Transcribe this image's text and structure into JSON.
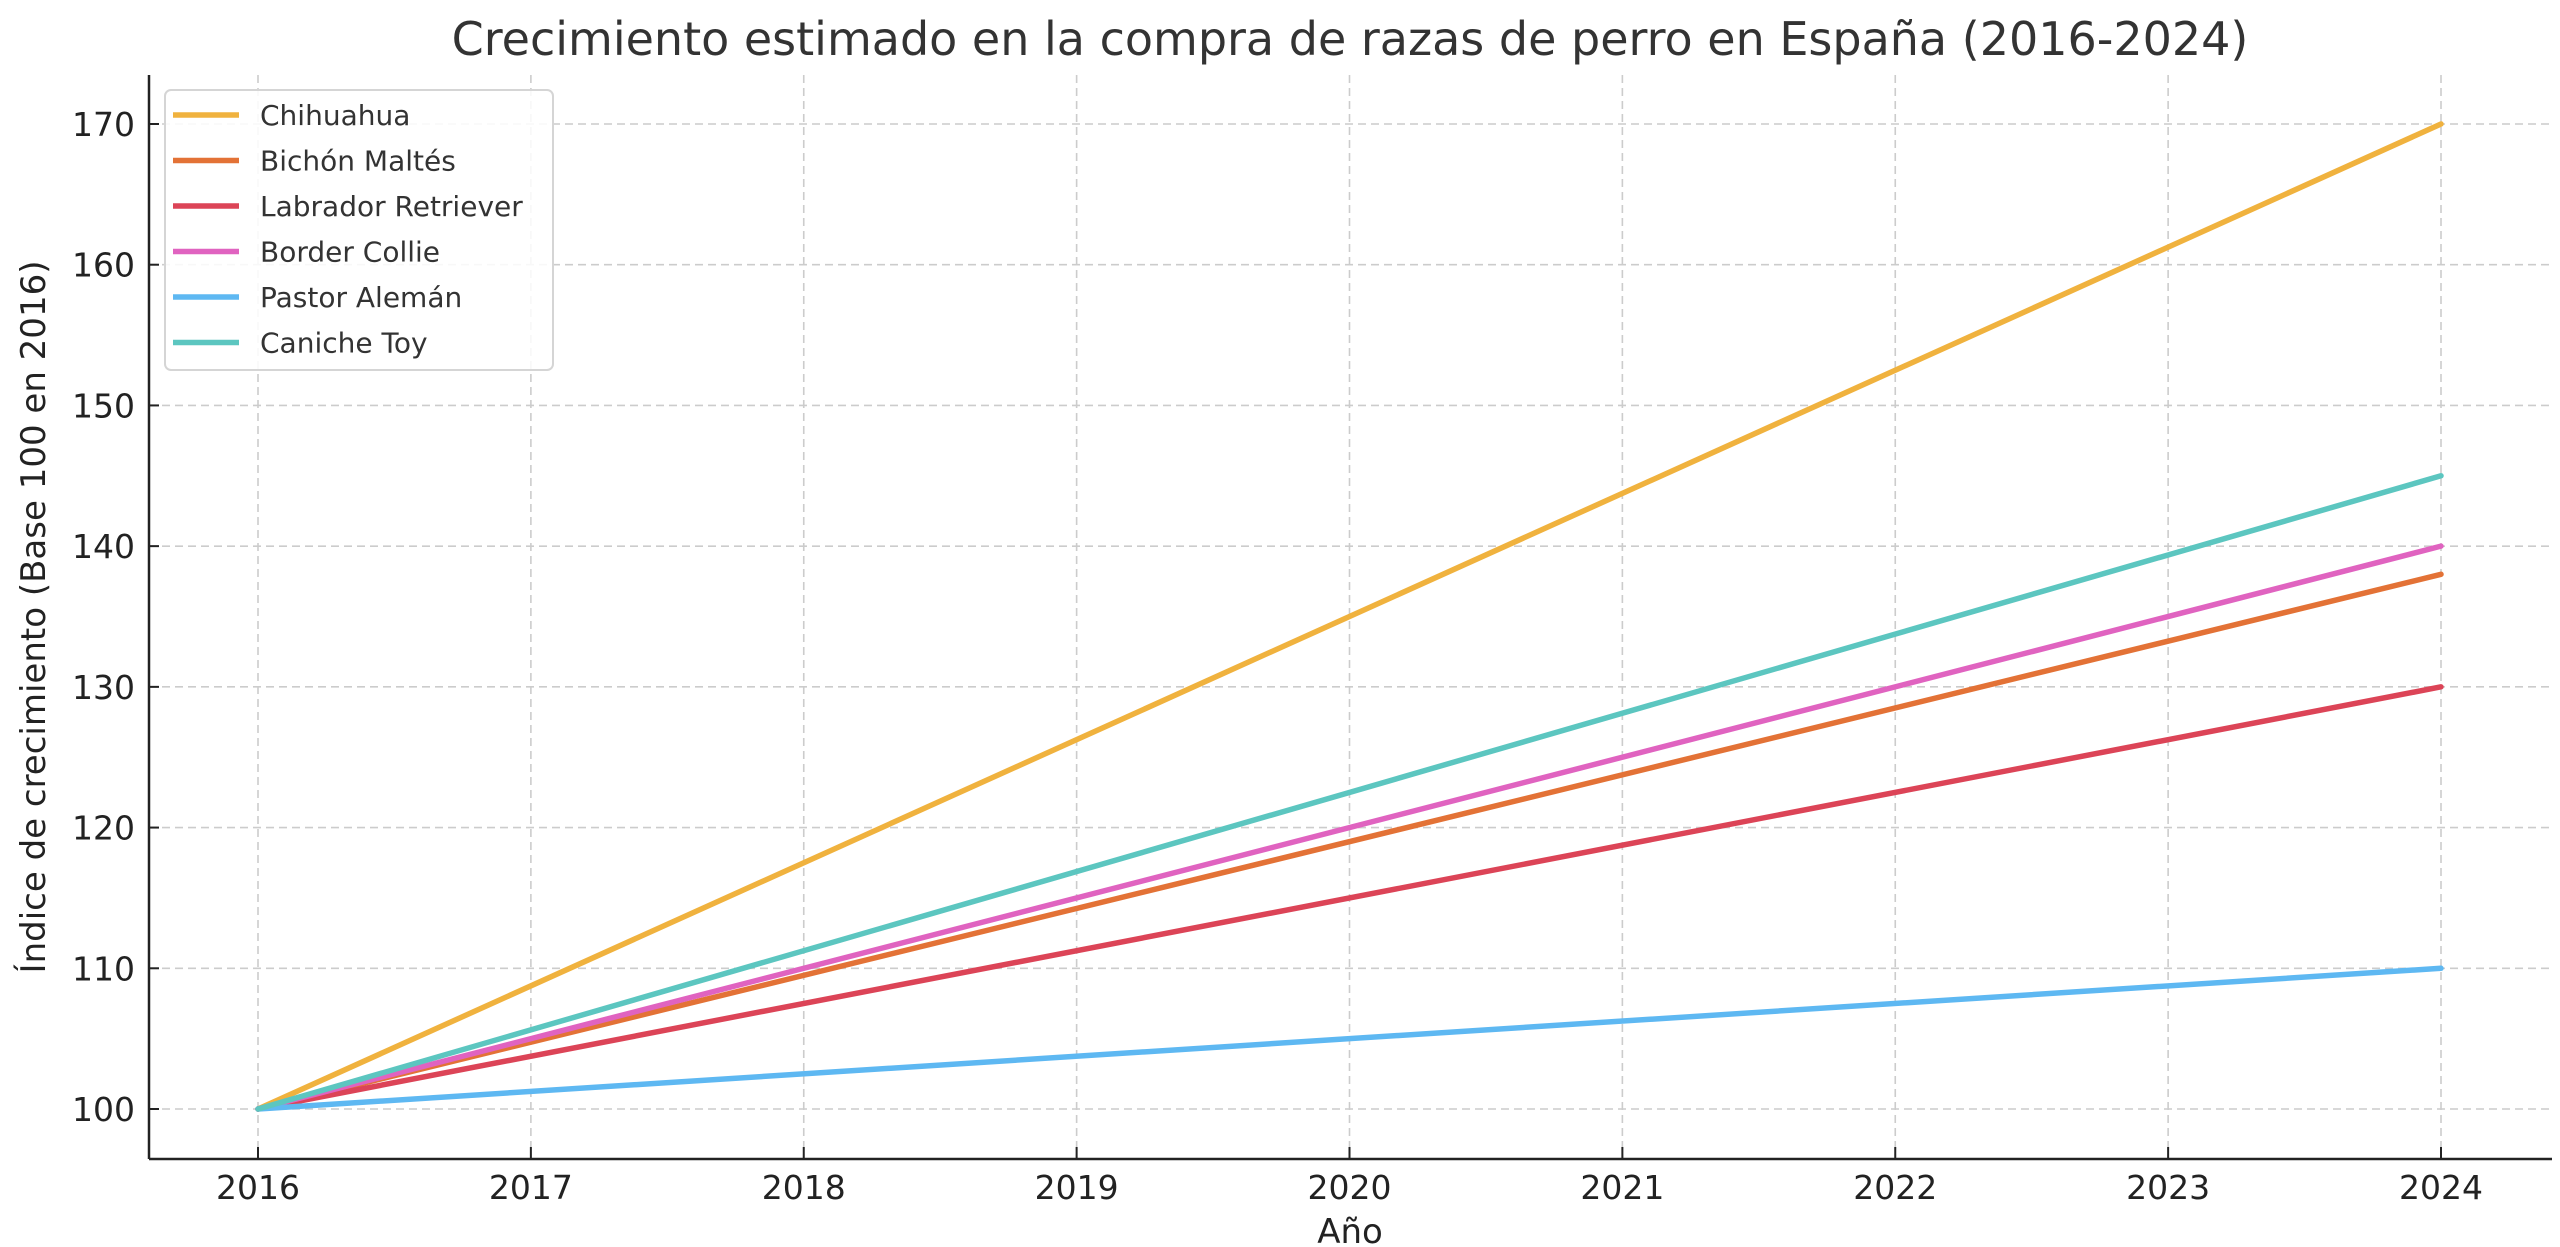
{
  "chart_data": {
    "type": "line",
    "title": "Crecimiento estimado en la compra de razas de perro en España (2016-2024)",
    "xlabel": "Año",
    "ylabel": "Índice de crecimiento (Base 100 en 2016)",
    "x": [
      2016,
      2024
    ],
    "xticks": [
      "2016",
      "2017",
      "2018",
      "2019",
      "2020",
      "2021",
      "2022",
      "2023",
      "2024"
    ],
    "yticks": [
      "100",
      "110",
      "120",
      "130",
      "140",
      "150",
      "160",
      "170"
    ],
    "xlim": [
      2015.6,
      2024.4
    ],
    "ylim": [
      96.5,
      173.5
    ],
    "grid": true,
    "legend_position": "top-left",
    "series": [
      {
        "name": "Chihuahua",
        "color": "#F0B23E",
        "values": [
          100,
          170
        ]
      },
      {
        "name": "Bichón Maltés",
        "color": "#E37236",
        "values": [
          100,
          138
        ]
      },
      {
        "name": "Labrador Retriever",
        "color": "#DC4457",
        "values": [
          100,
          130
        ]
      },
      {
        "name": "Border Collie",
        "color": "#E063C0",
        "values": [
          100,
          140
        ]
      },
      {
        "name": "Pastor Alemán",
        "color": "#5EB8F2",
        "values": [
          100,
          110
        ]
      },
      {
        "name": "Caniche Toy",
        "color": "#5CC6C0",
        "values": [
          100,
          145
        ]
      }
    ]
  }
}
